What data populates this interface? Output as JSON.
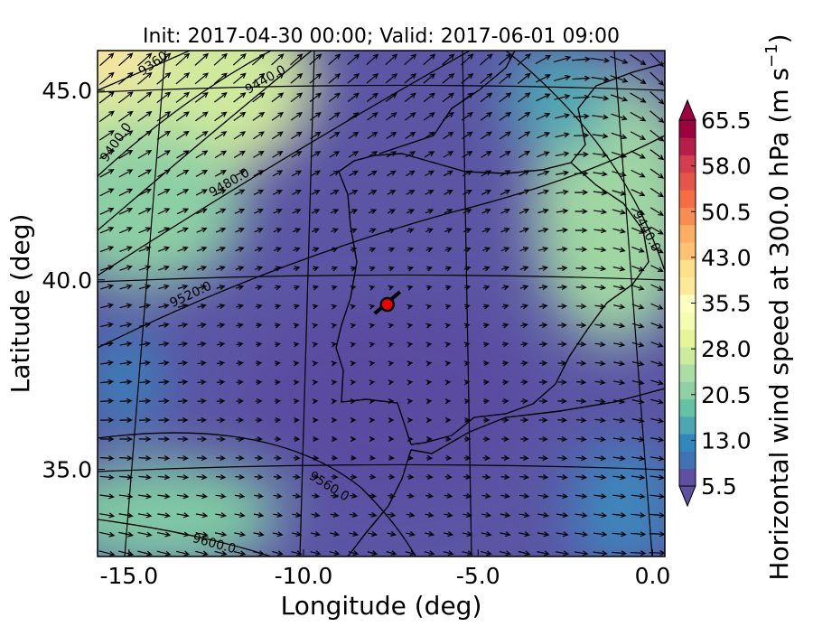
{
  "title": "Init: 2017-04-30 00:00; Valid: 2017-06-01 09:00",
  "x_label": "Longitude (deg)",
  "y_label": "Latitude (deg)",
  "xlim": [
    -15.9,
    0.35
  ],
  "ylim": [
    32.7,
    46.05
  ],
  "xticks": [
    {
      "value": -15,
      "label": "-15.0"
    },
    {
      "value": -10,
      "label": "-10.0"
    },
    {
      "value": -5,
      "label": "-5.0"
    },
    {
      "value": 0,
      "label": "0.0"
    }
  ],
  "yticks": [
    {
      "value": 35,
      "label": "35.0"
    },
    {
      "value": 40,
      "label": "40.0"
    },
    {
      "value": 45,
      "label": "45.0"
    }
  ],
  "colorbar": {
    "label": "Horizontal wind speed at 300.0 hPa (m s",
    "label_superscript": "−1",
    "label_end": ")",
    "lim": [
      5.5,
      65.5
    ],
    "ticks": [
      {
        "value": 5.5,
        "label": "5.5"
      },
      {
        "value": 13,
        "label": "13.0"
      },
      {
        "value": 20.5,
        "label": "20.5"
      },
      {
        "value": 28,
        "label": "28.0"
      },
      {
        "value": 35.5,
        "label": "35.5"
      },
      {
        "value": 43,
        "label": "43.0"
      },
      {
        "value": 50.5,
        "label": "50.5"
      },
      {
        "value": 58,
        "label": "58.0"
      },
      {
        "value": 65.5,
        "label": "65.5"
      }
    ],
    "colors": [
      "#5e4fa2",
      "#3f73b2",
      "#3288bd",
      "#4ea6b5",
      "#66c2a5",
      "#8fd1a4",
      "#abdda4",
      "#cdeb9d",
      "#e6f598",
      "#f6fbb2",
      "#ffffbf",
      "#fee99b",
      "#fee08b",
      "#fdc274",
      "#fdae61",
      "#f88d51",
      "#f46d43",
      "#e4554a",
      "#d53e4f",
      "#b81f48",
      "#9e0142"
    ]
  },
  "contour_labels": [
    "9360",
    "9400.0",
    "9440.0",
    "9480.0",
    "9520.0",
    "9560.0",
    "9600.0",
    "9440.0"
  ],
  "site": {
    "lon": -7.6,
    "lat": 39.35
  }
}
